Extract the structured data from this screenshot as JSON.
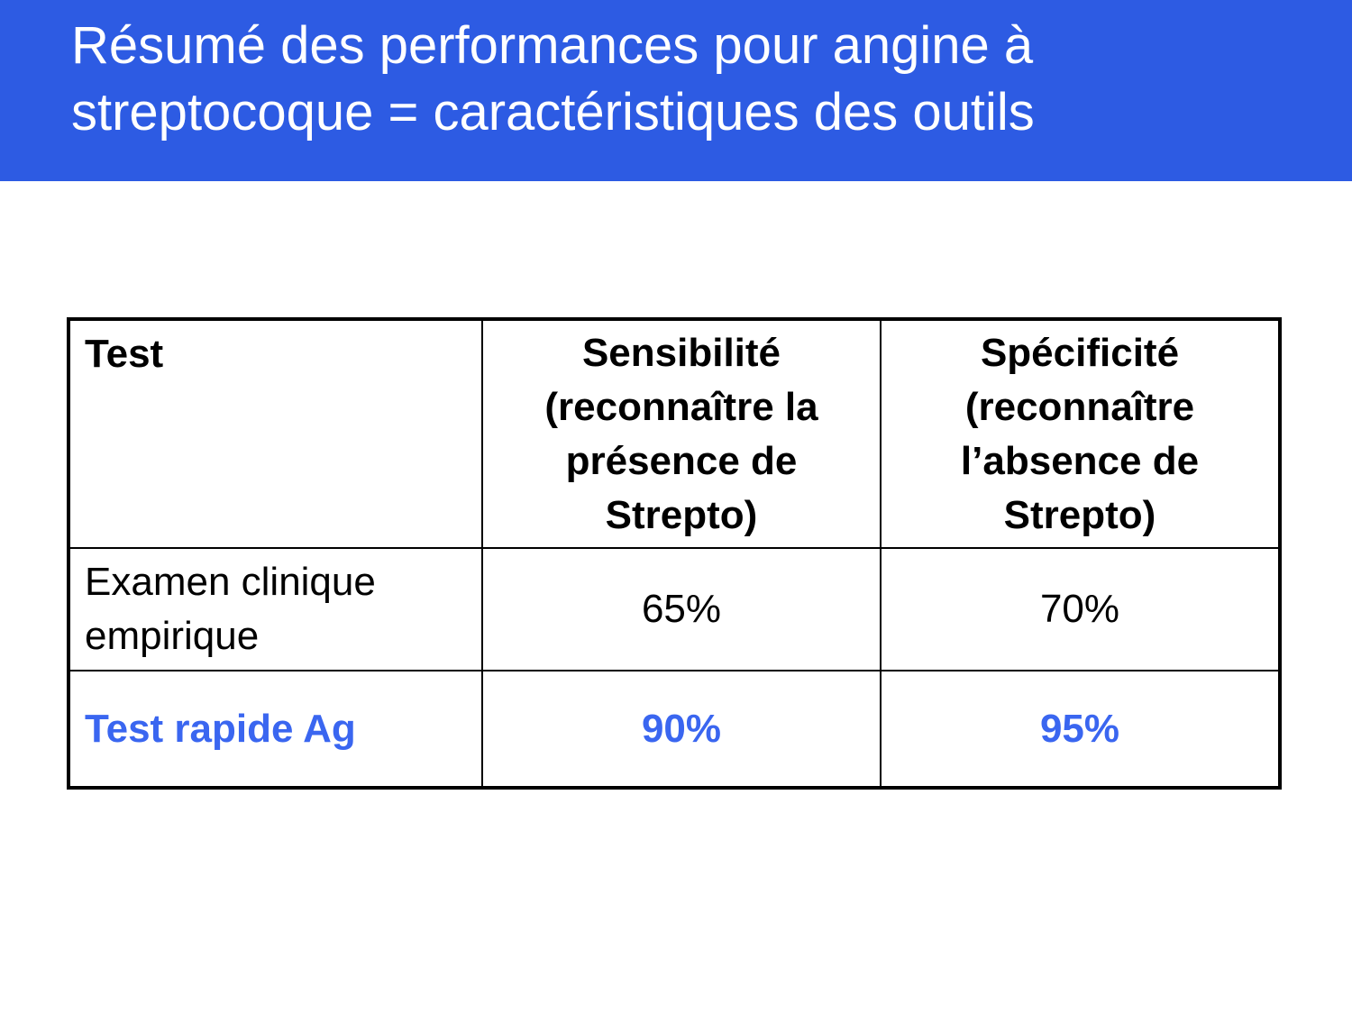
{
  "slide": {
    "title_lines": [
      "Résumé des performances pour angine à",
      "streptocoque = caractéristiques des outils"
    ],
    "colors": {
      "title_bar": "#2d5be3",
      "title_text": "#ffffff",
      "highlight_row": "#3a66f0",
      "table_border": "#000000"
    }
  },
  "table": {
    "headers": [
      {
        "lines": [
          "Test"
        ]
      },
      {
        "lines": [
          "Sensibilité",
          "(reconnaître la",
          "présence de",
          "Strepto)"
        ]
      },
      {
        "lines": [
          "Spécificité",
          "(reconnaître",
          "l’absence de",
          "Strepto)"
        ]
      }
    ],
    "rows": [
      {
        "test_lines": [
          "Examen clinique",
          "empirique"
        ],
        "sensibilite": "65%",
        "specificite": "70%",
        "highlighted": false
      },
      {
        "test_lines": [
          "Test rapide Ag"
        ],
        "sensibilite": "90%",
        "specificite": "95%",
        "highlighted": true
      }
    ]
  }
}
